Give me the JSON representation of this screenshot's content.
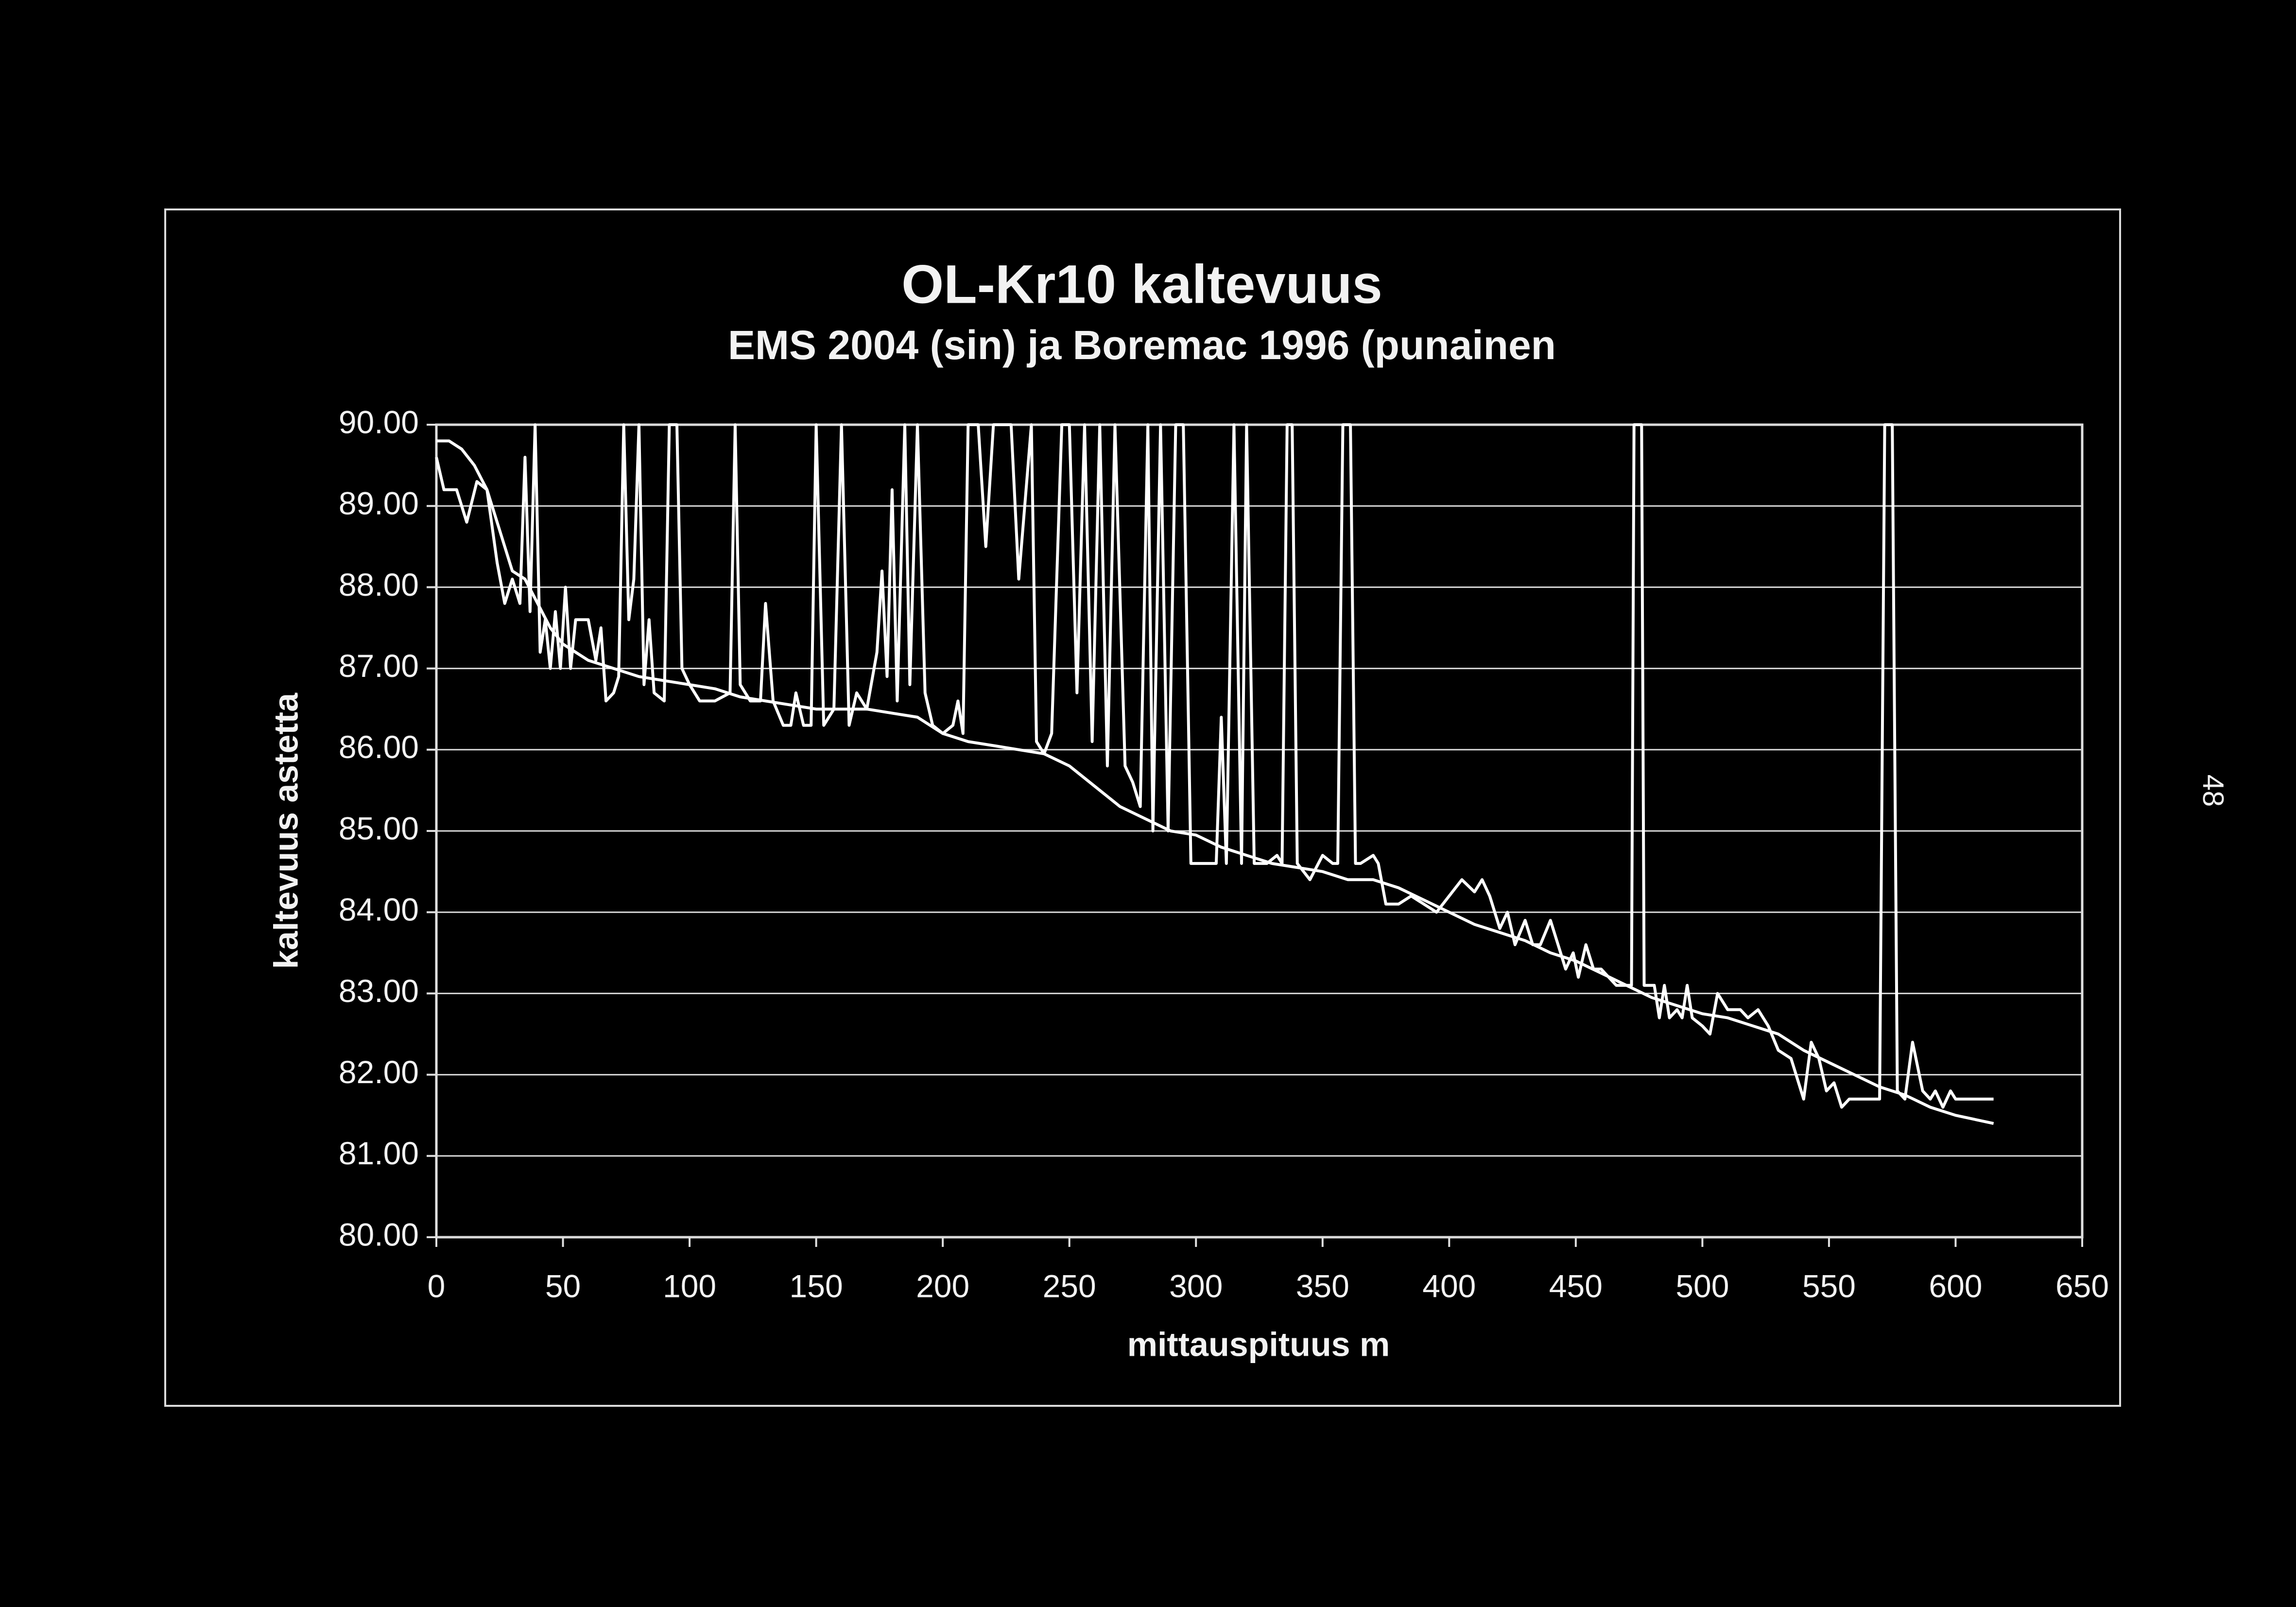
{
  "chart_data": {
    "type": "line",
    "title": "OL-Kr10 kaltevuus",
    "subtitle": "EMS 2004 (sin) ja Boremac 1996 (punainen",
    "xlabel": "mittauspituus m",
    "ylabel": "kaltevuus astetta",
    "page_number": "48",
    "xlim": [
      0,
      650
    ],
    "xticks": [
      0,
      50,
      100,
      150,
      200,
      250,
      300,
      350,
      400,
      450,
      500,
      550,
      600,
      650
    ],
    "ylim": [
      80,
      90
    ],
    "yticks": [
      {
        "value": 80,
        "label": "80.00"
      },
      {
        "value": 81,
        "label": "81.00"
      },
      {
        "value": 82,
        "label": "82.00"
      },
      {
        "value": 83,
        "label": "83.00"
      },
      {
        "value": 84,
        "label": "84.00"
      },
      {
        "value": 85,
        "label": "85.00"
      },
      {
        "value": 86,
        "label": "86.00"
      },
      {
        "value": 87,
        "label": "87.00"
      },
      {
        "value": 88,
        "label": "88.00"
      },
      {
        "value": 89,
        "label": "89.00"
      },
      {
        "value": 90,
        "label": "90.00"
      }
    ],
    "grid": true,
    "series": [
      {
        "color": "#ffffff",
        "x": [
          0,
          5,
          10,
          15,
          20,
          25,
          30,
          35,
          40,
          45,
          50,
          55,
          60,
          70,
          80,
          90,
          100,
          110,
          120,
          130,
          140,
          150,
          160,
          170,
          180,
          190,
          200,
          210,
          220,
          230,
          240,
          250,
          260,
          270,
          280,
          290,
          300,
          310,
          320,
          330,
          340,
          350,
          360,
          370,
          380,
          390,
          400,
          410,
          420,
          430,
          440,
          450,
          460,
          470,
          480,
          490,
          500,
          510,
          520,
          530,
          540,
          550,
          560,
          570,
          580,
          590,
          600,
          615
        ],
        "values": [
          89.8,
          89.8,
          89.7,
          89.5,
          89.2,
          88.7,
          88.2,
          88.1,
          87.8,
          87.5,
          87.3,
          87.2,
          87.1,
          87.0,
          86.9,
          86.85,
          86.8,
          86.75,
          86.65,
          86.6,
          86.55,
          86.5,
          86.5,
          86.5,
          86.45,
          86.4,
          86.2,
          86.1,
          86.05,
          86.0,
          85.95,
          85.8,
          85.55,
          85.3,
          85.15,
          85.0,
          84.95,
          84.8,
          84.7,
          84.6,
          84.55,
          84.5,
          84.4,
          84.4,
          84.3,
          84.15,
          84.0,
          83.85,
          83.75,
          83.65,
          83.5,
          83.4,
          83.25,
          83.1,
          82.95,
          82.85,
          82.75,
          82.7,
          82.6,
          82.5,
          82.3,
          82.15,
          82.0,
          81.85,
          81.75,
          81.6,
          81.5,
          81.4
        ]
      },
      {
        "color": "#ffffff",
        "x": [
          0,
          3,
          8,
          12,
          16,
          20,
          24,
          27,
          30,
          33,
          35,
          37,
          39,
          41,
          43,
          45,
          47,
          49,
          51,
          53,
          55,
          60,
          63,
          65,
          67,
          70,
          72,
          74,
          76,
          78,
          80,
          82,
          84,
          86,
          90,
          92,
          95,
          97,
          100,
          104,
          110,
          116,
          118,
          120,
          124,
          128,
          130,
          133,
          137,
          140,
          142,
          145,
          148,
          150,
          153,
          157,
          160,
          163,
          166,
          170,
          174,
          176,
          178,
          180,
          182,
          185,
          187,
          190,
          193,
          196,
          200,
          204,
          206,
          208,
          210,
          214,
          217,
          220,
          227,
          230,
          235,
          237,
          240,
          243,
          247,
          250,
          253,
          256,
          259,
          262,
          265,
          268,
          272,
          275,
          278,
          281,
          283,
          286,
          289,
          292,
          295,
          298,
          303,
          308,
          310,
          312,
          315,
          318,
          320,
          323,
          328,
          332,
          334,
          336,
          338,
          340,
          345,
          350,
          354,
          356,
          358,
          361,
          363,
          365,
          370,
          372,
          375,
          380,
          385,
          390,
          395,
          400,
          405,
          410,
          413,
          416,
          420,
          423,
          426,
          430,
          433,
          436,
          440,
          443,
          446,
          449,
          451,
          454,
          457,
          460,
          463,
          466,
          472,
          473,
          476,
          477,
          481,
          483,
          485,
          487,
          490,
          492,
          494,
          496,
          500,
          503,
          506,
          510,
          515,
          518,
          522,
          526,
          530,
          535,
          540,
          543,
          546,
          549,
          552,
          555,
          558,
          562,
          570,
          572,
          575,
          577,
          580,
          583,
          587,
          590,
          592,
          595,
          598,
          600,
          615
        ],
        "values": [
          89.6,
          89.2,
          89.2,
          88.8,
          89.3,
          89.2,
          88.3,
          87.8,
          88.1,
          87.8,
          89.6,
          87.7,
          90,
          87.2,
          87.6,
          87.0,
          87.7,
          87.0,
          88.0,
          87.0,
          87.6,
          87.6,
          87.1,
          87.5,
          86.6,
          86.7,
          86.9,
          90,
          87.6,
          88.1,
          90,
          86.8,
          87.6,
          86.7,
          86.6,
          90,
          90,
          87.0,
          86.8,
          86.6,
          86.6,
          86.7,
          90,
          86.8,
          86.6,
          86.6,
          87.8,
          86.6,
          86.3,
          86.3,
          86.7,
          86.3,
          86.3,
          90,
          86.3,
          86.5,
          90,
          86.3,
          86.7,
          86.5,
          87.2,
          88.2,
          86.9,
          89.2,
          86.6,
          90,
          86.8,
          90,
          86.7,
          86.3,
          86.2,
          86.3,
          86.6,
          86.2,
          90,
          90,
          88.5,
          90,
          90,
          88.1,
          90,
          86.1,
          85.95,
          86.2,
          90,
          90,
          86.7,
          90,
          86.1,
          90,
          85.8,
          90,
          85.8,
          85.6,
          85.3,
          90,
          85.0,
          90,
          85.0,
          90,
          90,
          84.6,
          84.6,
          84.6,
          86.4,
          84.6,
          90,
          84.6,
          90,
          84.6,
          84.6,
          84.7,
          84.6,
          90,
          90,
          84.6,
          84.4,
          84.7,
          84.6,
          84.6,
          90,
          90,
          84.6,
          84.6,
          84.7,
          84.6,
          84.1,
          84.1,
          84.2,
          84.1,
          84.0,
          84.2,
          84.4,
          84.25,
          84.4,
          84.2,
          83.8,
          84.0,
          83.6,
          83.9,
          83.6,
          83.6,
          83.9,
          83.6,
          83.3,
          83.5,
          83.2,
          83.6,
          83.3,
          83.3,
          83.2,
          83.1,
          83.1,
          90,
          90,
          83.1,
          83.1,
          82.7,
          83.1,
          82.7,
          82.8,
          82.7,
          83.1,
          82.7,
          82.6,
          82.5,
          83.0,
          82.8,
          82.8,
          82.7,
          82.8,
          82.6,
          82.3,
          82.2,
          81.7,
          82.4,
          82.2,
          81.8,
          81.9,
          81.6,
          81.7,
          81.7,
          81.7,
          90,
          90,
          81.8,
          81.7,
          82.4,
          81.8,
          81.7,
          81.8,
          81.6,
          81.8,
          81.7,
          81.7
        ]
      }
    ]
  }
}
